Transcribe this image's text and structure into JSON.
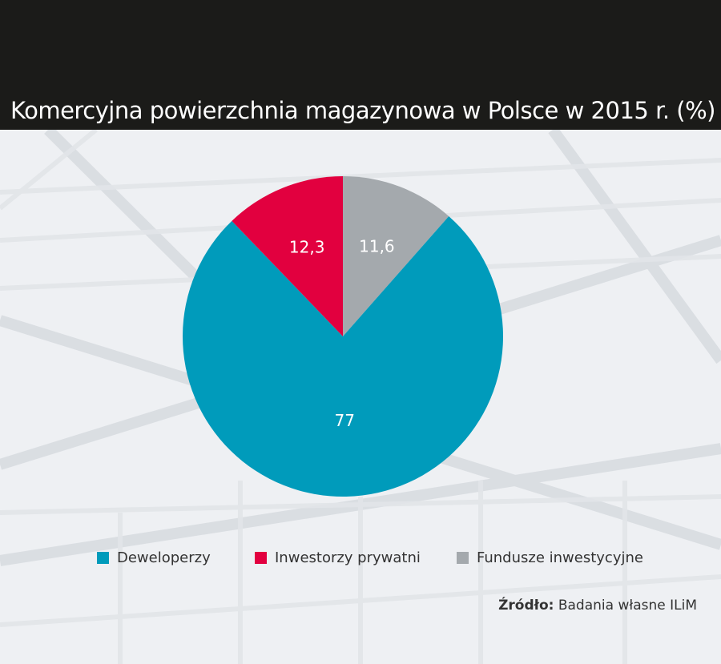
{
  "title": "Komercyjna powierzchnia magazynowa w Polsce w 2015 r. (%)",
  "colors": {
    "header_bg": "#1b1b19",
    "deweloperzy": "#009bbb",
    "inwestorzy": "#e2003f",
    "fundusze": "#a4a9ad"
  },
  "legend": [
    {
      "label": "Deweloperzy",
      "color": "#009bbb"
    },
    {
      "label": "Inwestorzy prywatni",
      "color": "#e2003f"
    },
    {
      "label": "Fundusze inwestycyjne",
      "color": "#a4a9ad"
    }
  ],
  "source": {
    "label": "Źródło:",
    "text": " Badania własne ILiM"
  },
  "chart_data": {
    "type": "pie",
    "title": "Komercyjna powierzchnia magazynowa w Polsce w 2015 r. (%)",
    "categories": [
      "Deweloperzy",
      "Inwestorzy prywatni",
      "Fundusze inwestycyjne"
    ],
    "values": [
      77,
      12.3,
      11.6
    ],
    "labels": [
      "77",
      "12,3",
      "11,6"
    ],
    "colors": [
      "#009bbb",
      "#e2003f",
      "#a4a9ad"
    ],
    "legend_position": "bottom",
    "source": "Źródło: Badania własne ILiM"
  }
}
